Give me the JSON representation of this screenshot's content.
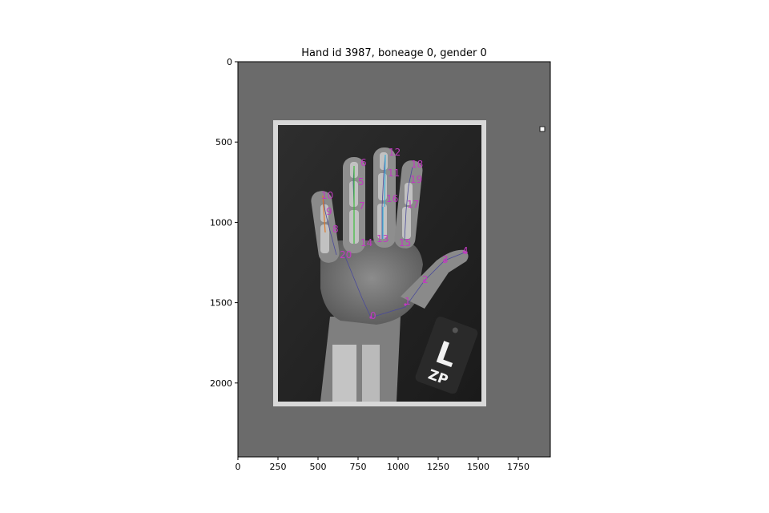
{
  "figure": {
    "title": "Hand id 3987, boneage 0, gender 0"
  },
  "axes": {
    "x_ticks": [
      "0",
      "250",
      "500",
      "750",
      "1000",
      "1250",
      "1500",
      "1750"
    ],
    "y_ticks": [
      "0",
      "500",
      "1000",
      "1500",
      "2000"
    ],
    "xlim": [
      0,
      1950
    ],
    "ylim": [
      2460,
      0
    ]
  },
  "xray": {
    "tag_letter": "L",
    "tag_initials": "ZP"
  },
  "keypoints": {
    "color": "#c03ac0",
    "labels": [
      "0",
      "1",
      "2",
      "3",
      "4",
      "5",
      "6",
      "7",
      "8",
      "9",
      "10",
      "11",
      "12",
      "13",
      "14",
      "15",
      "16",
      "17",
      "18",
      "19",
      "20"
    ]
  },
  "colors": {
    "film_bg": "#6a6a6a",
    "keypoint": "#c03ac0",
    "skeleton": "#4a4a9a"
  }
}
